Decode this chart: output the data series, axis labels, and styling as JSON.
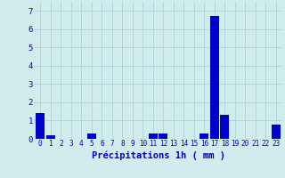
{
  "hours": [
    0,
    1,
    2,
    3,
    4,
    5,
    6,
    7,
    8,
    9,
    10,
    11,
    12,
    13,
    14,
    15,
    16,
    17,
    18,
    19,
    20,
    21,
    22,
    23
  ],
  "values": [
    1.4,
    0.2,
    0.0,
    0.0,
    0.0,
    0.3,
    0.0,
    0.0,
    0.0,
    0.0,
    0.0,
    0.3,
    0.3,
    0.0,
    0.0,
    0.0,
    0.3,
    6.7,
    1.3,
    0.0,
    0.0,
    0.0,
    0.0,
    0.8
  ],
  "bar_color": "#0000cc",
  "background_color": "#d0ecec",
  "grid_color": "#b0d8d8",
  "xlabel": "Précipitations 1h ( mm )",
  "xlabel_color": "#0000cc",
  "xlabel_fontsize": 7.5,
  "tick_color": "#0000cc",
  "tick_fontsize": 5.5,
  "ytick_fontsize": 6.5,
  "ylim": [
    0,
    7.5
  ],
  "yticks": [
    0,
    1,
    2,
    3,
    4,
    5,
    6,
    7
  ]
}
